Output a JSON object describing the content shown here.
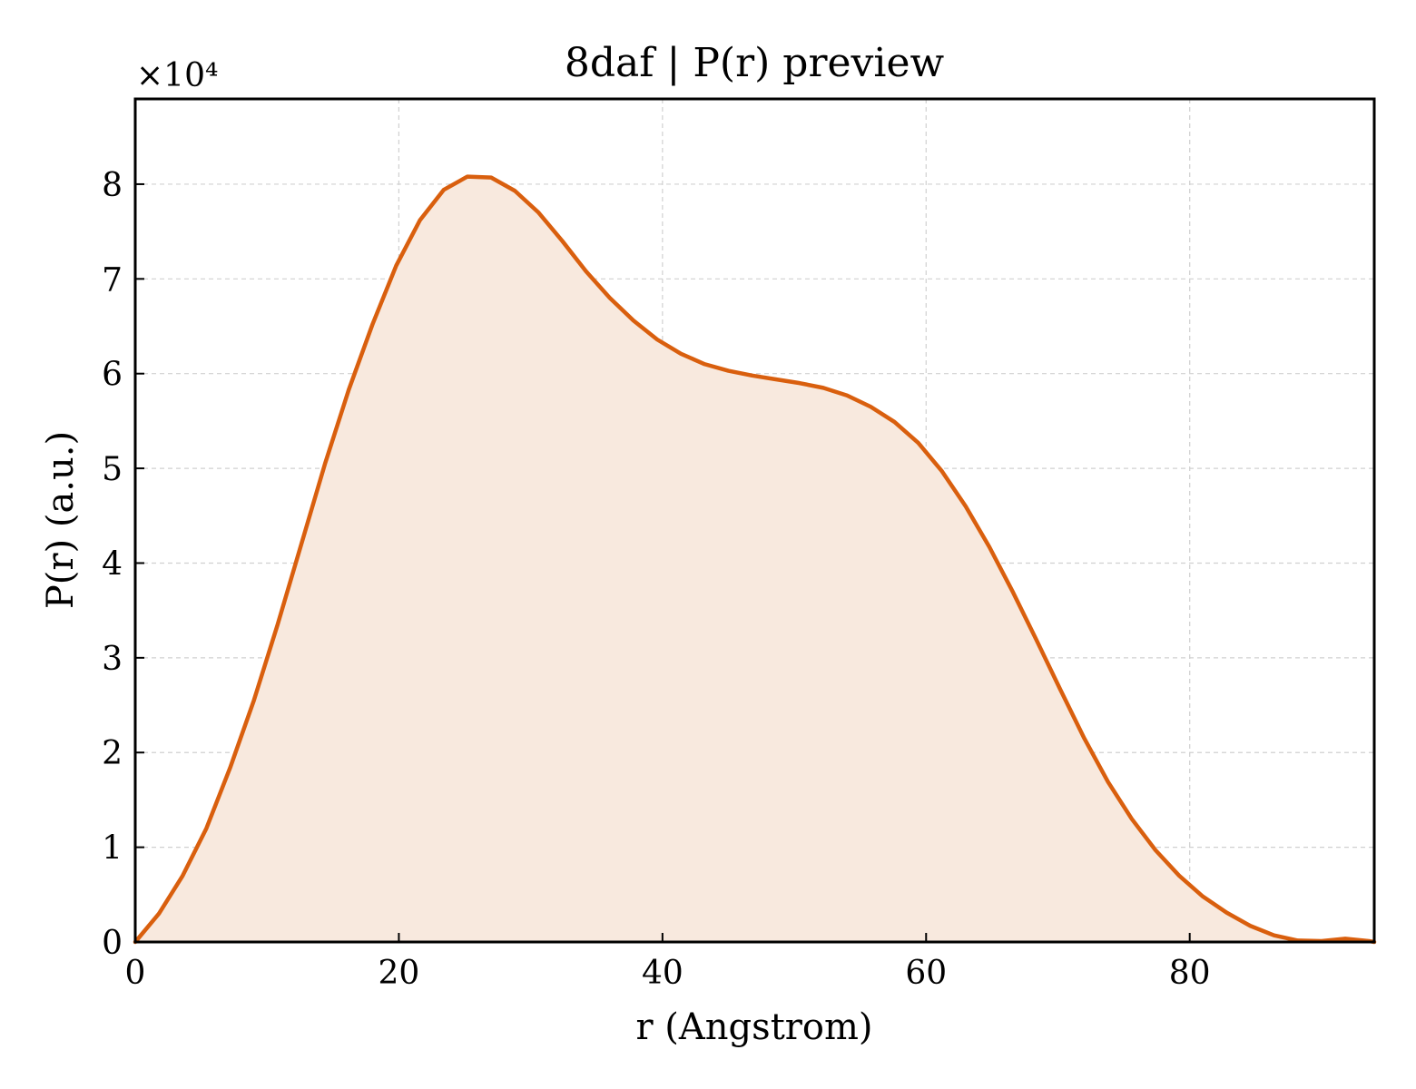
{
  "chart_data": {
    "type": "area",
    "title": "8daf | P(r) preview",
    "xlabel": "r (Angstrom)",
    "ylabel": "P(r) (a.u.)",
    "y_scale_label": "×10⁴",
    "xlim": [
      0,
      94
    ],
    "ylim": [
      0,
      8.9
    ],
    "y_multiplier": 10000,
    "xticks": [
      0,
      20,
      40,
      60,
      80
    ],
    "yticks": [
      0,
      1,
      2,
      3,
      4,
      5,
      6,
      7,
      8
    ],
    "grid": true,
    "line_color": "#d95f0e",
    "fill_color": "#f8e9de",
    "series": [
      {
        "x": [
          0,
          1.8,
          3.6,
          5.4,
          7.2,
          9.0,
          10.8,
          12.6,
          14.4,
          16.2,
          18.0,
          19.8,
          21.6,
          23.4,
          25.2,
          27.0,
          28.8,
          30.6,
          32.4,
          34.2,
          36.0,
          37.8,
          39.6,
          41.4,
          43.2,
          45.0,
          46.8,
          48.6,
          50.4,
          52.2,
          54.0,
          55.8,
          57.6,
          59.4,
          61.2,
          63.0,
          64.8,
          66.6,
          68.4,
          70.2,
          72.0,
          73.8,
          75.6,
          77.4,
          79.2,
          81.0,
          82.8,
          84.6,
          86.4,
          88.2,
          90.0,
          91.8,
          93.6,
          94.0
        ],
        "y": [
          0.0,
          0.3,
          0.7,
          1.2,
          1.84,
          2.55,
          3.35,
          4.2,
          5.05,
          5.83,
          6.52,
          7.14,
          7.62,
          7.94,
          8.08,
          8.07,
          7.93,
          7.7,
          7.4,
          7.08,
          6.8,
          6.56,
          6.36,
          6.21,
          6.1,
          6.03,
          5.98,
          5.94,
          5.9,
          5.85,
          5.77,
          5.65,
          5.49,
          5.27,
          4.97,
          4.6,
          4.17,
          3.69,
          3.18,
          2.66,
          2.15,
          1.69,
          1.3,
          0.97,
          0.7,
          0.48,
          0.31,
          0.17,
          0.07,
          0.015,
          0.01,
          0.035,
          0.01,
          0.0
        ]
      }
    ]
  }
}
